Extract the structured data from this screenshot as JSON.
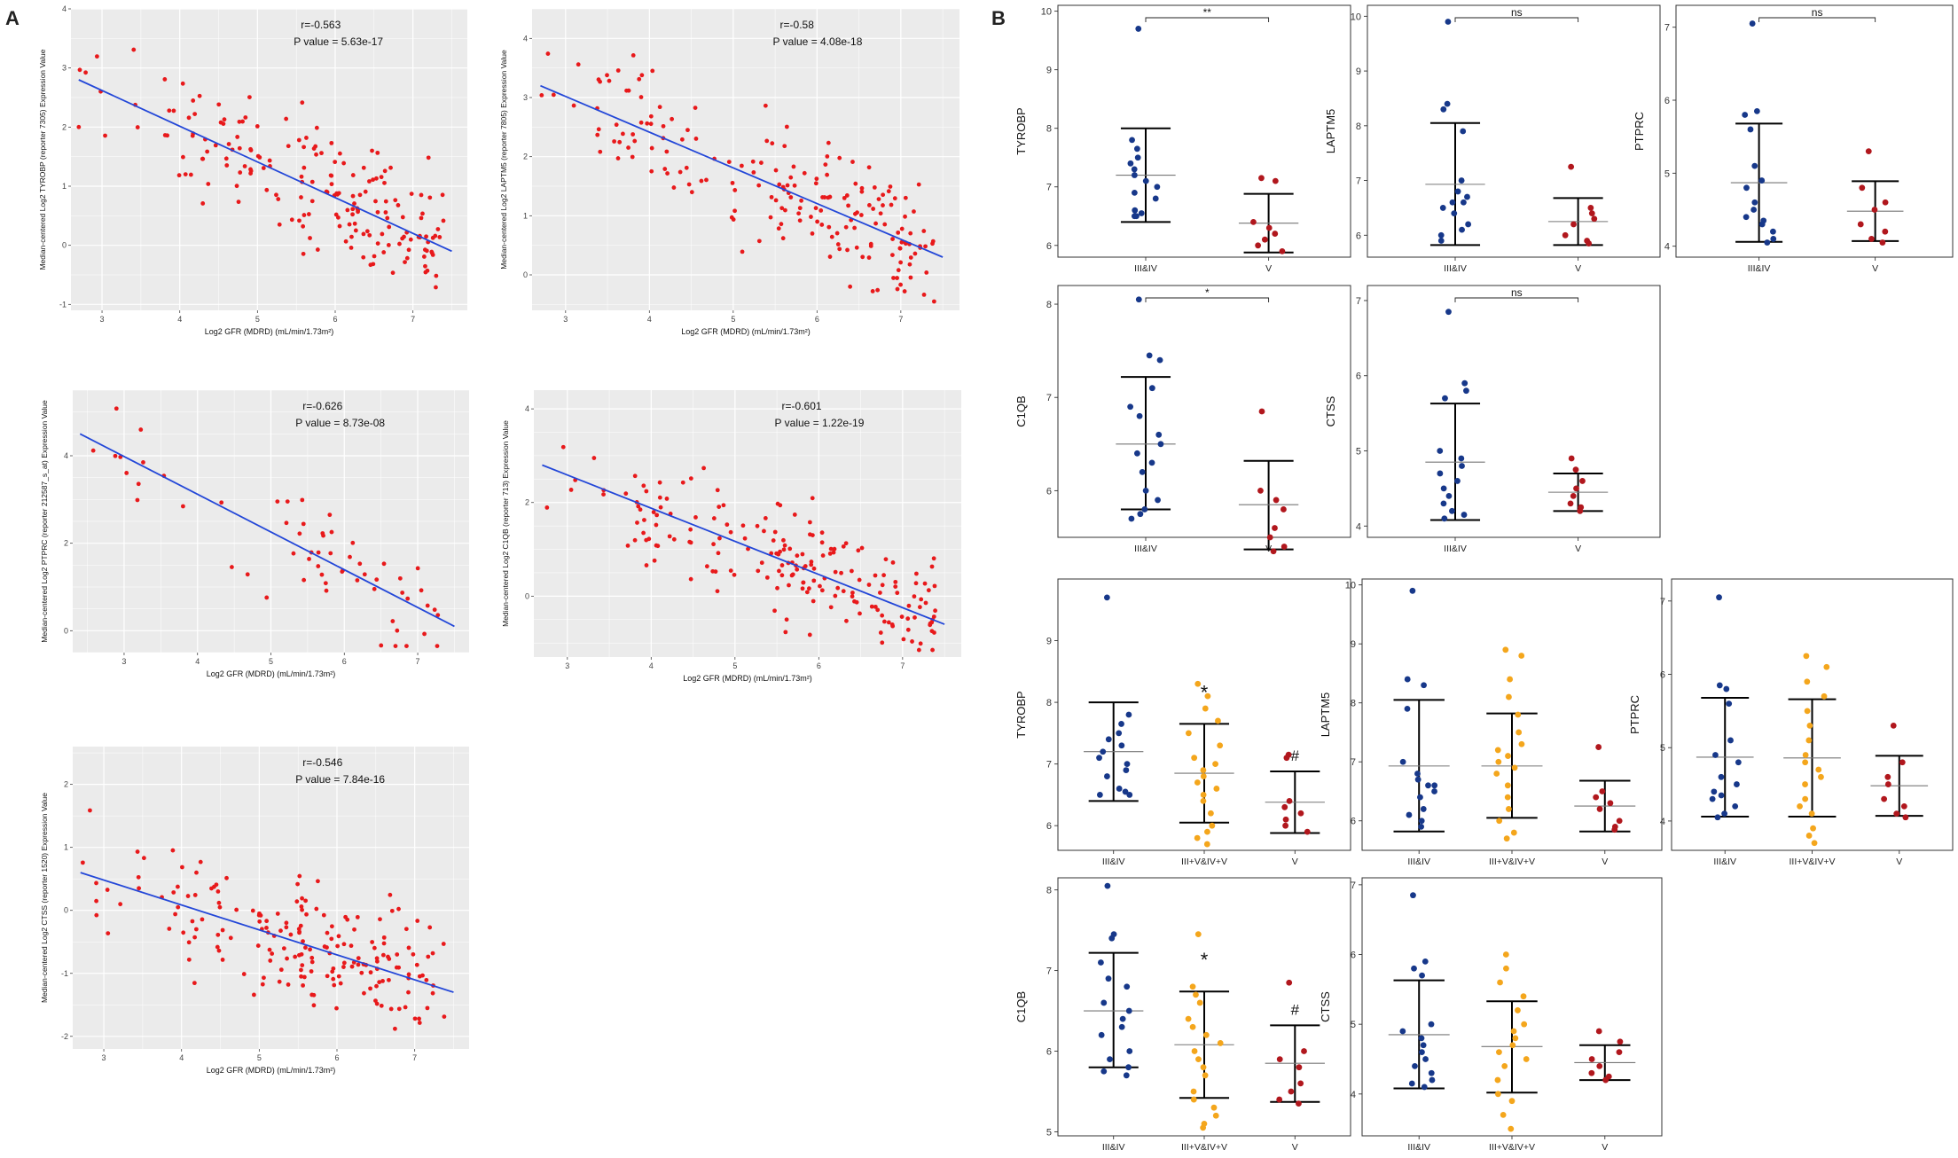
{
  "panel_labels": {
    "a": "A",
    "b": "B"
  },
  "colors": {
    "panel_bg": "#ebebeb",
    "grid": "#ffffff",
    "point": "#e8191b",
    "fit": "#2347d8",
    "grp1": "#17388a",
    "grp2": "#f4a61c",
    "grp3": "#b1171d"
  },
  "chart_data": [
    {
      "type": "scatter",
      "ylabel": "Median-centered Log2 TYROBP (reporter 7305) Expression Value",
      "xlabel": "Log2 GFR (MDRD) (mL/min/1.73m²)",
      "xlim": [
        2.6,
        7.7
      ],
      "ylim": [
        -1.1,
        4.0
      ],
      "xticks": [
        "3",
        "4",
        "5",
        "6",
        "7"
      ],
      "yticks": [
        "-1",
        "0",
        "1",
        "2",
        "3",
        "4"
      ],
      "annotation": [
        "r=-0.563",
        "P value = 5.63e-17"
      ],
      "fit": [
        [
          2.7,
          2.8
        ],
        [
          7.5,
          -0.1
        ]
      ],
      "n_points": 190,
      "seed": 11
    },
    {
      "type": "scatter",
      "ylabel": "Median-centered Log2 LAPTM5 (reporter 7805) Expression Value",
      "xlabel": "Log2 GFR (MDRD) (mL/min/1.73m²)",
      "xlim": [
        2.6,
        7.7
      ],
      "ylim": [
        -0.6,
        4.5
      ],
      "xticks": [
        "3",
        "4",
        "5",
        "6",
        "7"
      ],
      "yticks": [
        "0",
        "1",
        "2",
        "3",
        "4"
      ],
      "annotation": [
        "r=-0.58",
        "P value = 4.08e-18"
      ],
      "fit": [
        [
          2.7,
          3.2
        ],
        [
          7.5,
          0.3
        ]
      ],
      "n_points": 190,
      "seed": 23
    },
    {
      "type": "scatter",
      "ylabel": "Median-centered Log2 PTPRC (reporter 212587_s_at) Expression Value",
      "xlabel": "Log2 GFR (MDRD) (mL/min/1.73m²)",
      "xlim": [
        2.3,
        7.7
      ],
      "ylim": [
        -0.5,
        5.5
      ],
      "xticks": [
        "3",
        "4",
        "5",
        "6",
        "7"
      ],
      "yticks": [
        "0",
        "2",
        "4"
      ],
      "annotation": [
        "r=-0.626",
        "P value = 8.73e-08"
      ],
      "fit": [
        [
          2.4,
          4.5
        ],
        [
          7.5,
          0.1
        ]
      ],
      "n_points": 60,
      "seed": 37
    },
    {
      "type": "scatter",
      "ylabel": "Median-centered Log2 C1QB (reporter 713) Expression Value",
      "xlabel": "Log2 GFR (MDRD) (mL/min/1.73m²)",
      "xlim": [
        2.6,
        7.7
      ],
      "ylim": [
        -1.3,
        4.4
      ],
      "xticks": [
        "3",
        "4",
        "5",
        "6",
        "7"
      ],
      "yticks": [
        "0",
        "2",
        "4"
      ],
      "annotation": [
        "r=-0.601",
        "P value = 1.22e-19"
      ],
      "fit": [
        [
          2.7,
          2.8
        ],
        [
          7.5,
          -0.6
        ]
      ],
      "n_points": 190,
      "seed": 41
    },
    {
      "type": "scatter",
      "ylabel": "Median-centered Log2 CTSS (reporter 1520) Expression Value",
      "xlabel": "Log2 GFR (MDRD) (mL/min/1.73m²)",
      "xlim": [
        2.6,
        7.7
      ],
      "ylim": [
        -2.2,
        2.6
      ],
      "xticks": [
        "3",
        "4",
        "5",
        "6",
        "7"
      ],
      "yticks": [
        "-2",
        "-1",
        "0",
        "1",
        "2"
      ],
      "annotation": [
        "r=-0.546",
        "P value = 7.84e-16"
      ],
      "fit": [
        [
          2.7,
          0.6
        ],
        [
          7.5,
          -1.3
        ]
      ],
      "n_points": 190,
      "seed": 53
    },
    {
      "type": "dotplot",
      "ylabel": "TYROBP",
      "ylim": [
        5.8,
        10.1
      ],
      "yticks": [
        "6",
        "7",
        "8",
        "9",
        "10"
      ],
      "categories": [
        "III&IV",
        "V"
      ],
      "bracket": "**",
      "groups": [
        {
          "mean": 7.2,
          "lo": 6.4,
          "hi": 8.0,
          "points": [
            9.7,
            7.8,
            7.65,
            7.5,
            7.4,
            7.3,
            7.2,
            7.1,
            7.0,
            6.9,
            6.8,
            6.6,
            6.55,
            6.5,
            6.5
          ]
        },
        {
          "mean": 6.38,
          "lo": 5.88,
          "hi": 6.88,
          "points": [
            7.15,
            7.1,
            6.4,
            6.3,
            6.2,
            6.1,
            6.0,
            5.9
          ]
        }
      ]
    },
    {
      "type": "dotplot",
      "ylabel": "LAPTM5",
      "ylim": [
        5.6,
        10.2
      ],
      "yticks": [
        "6",
        "7",
        "8",
        "9",
        "10"
      ],
      "categories": [
        "III&IV",
        "V"
      ],
      "bracket": "ns",
      "groups": [
        {
          "mean": 6.93,
          "lo": 5.82,
          "hi": 8.05,
          "points": [
            9.9,
            8.4,
            8.3,
            7.9,
            7.0,
            6.7,
            6.6,
            6.6,
            6.4,
            6.2,
            6.1,
            6.0,
            5.9,
            6.8,
            6.5
          ]
        },
        {
          "mean": 6.25,
          "lo": 5.82,
          "hi": 6.68,
          "points": [
            7.25,
            6.5,
            6.4,
            6.3,
            6.2,
            6.0,
            5.9,
            5.85
          ]
        }
      ]
    },
    {
      "type": "dotplot",
      "ylabel": "PTPRC",
      "ylim": [
        3.85,
        7.3
      ],
      "yticks": [
        "4",
        "5",
        "6",
        "7"
      ],
      "categories": [
        "III&IV",
        "V"
      ],
      "bracket": "ns",
      "groups": [
        {
          "mean": 4.87,
          "lo": 4.06,
          "hi": 5.68,
          "points": [
            7.05,
            5.85,
            5.8,
            5.6,
            5.1,
            4.9,
            4.6,
            4.5,
            4.4,
            4.35,
            4.3,
            4.1,
            4.05,
            4.2,
            4.8
          ]
        },
        {
          "mean": 4.48,
          "lo": 4.07,
          "hi": 4.89,
          "points": [
            5.3,
            4.8,
            4.6,
            4.5,
            4.3,
            4.2,
            4.1,
            4.05
          ]
        }
      ]
    },
    {
      "type": "dotplot",
      "ylabel": "C1QB",
      "ylim": [
        5.5,
        8.2
      ],
      "yticks": [
        "6",
        "7",
        "8"
      ],
      "categories": [
        "III&IV",
        "V"
      ],
      "bracket": "*",
      "groups": [
        {
          "mean": 6.5,
          "lo": 5.8,
          "hi": 7.22,
          "points": [
            8.05,
            7.45,
            7.4,
            7.1,
            6.9,
            6.8,
            6.5,
            6.4,
            6.3,
            6.2,
            6.0,
            5.9,
            5.8,
            5.75,
            5.7,
            6.6
          ]
        },
        {
          "mean": 5.85,
          "lo": 5.37,
          "hi": 6.32,
          "points": [
            6.85,
            6.0,
            5.9,
            5.8,
            5.6,
            5.5,
            5.4,
            5.35
          ]
        }
      ]
    },
    {
      "type": "dotplot",
      "ylabel": "CTSS",
      "ylim": [
        3.85,
        7.2
      ],
      "yticks": [
        "4",
        "5",
        "6",
        "7"
      ],
      "categories": [
        "III&IV",
        "V"
      ],
      "bracket": "ns",
      "groups": [
        {
          "mean": 4.85,
          "lo": 4.08,
          "hi": 5.63,
          "points": [
            6.85,
            5.9,
            5.8,
            5.7,
            4.9,
            4.7,
            4.6,
            4.5,
            4.4,
            4.3,
            4.2,
            4.15,
            4.1,
            4.8,
            5.0
          ]
        },
        {
          "mean": 4.45,
          "lo": 4.2,
          "hi": 4.7,
          "points": [
            4.9,
            4.75,
            4.6,
            4.5,
            4.4,
            4.3,
            4.25,
            4.2
          ]
        }
      ]
    },
    {
      "type": "dotplot",
      "ylabel": "TYROBP",
      "ylim": [
        5.6,
        10.0
      ],
      "yticks": [
        "6",
        "7",
        "8",
        "9"
      ],
      "categories": [
        "III&IV",
        "III+V&IV+V",
        "V"
      ],
      "marks": [
        "",
        "*",
        "#"
      ],
      "groups": [
        {
          "mean": 7.2,
          "lo": 6.4,
          "hi": 8.0,
          "points": [
            9.7,
            7.8,
            7.65,
            7.5,
            7.4,
            7.3,
            7.2,
            7.1,
            7.0,
            6.9,
            6.8,
            6.6,
            6.55,
            6.5,
            6.5
          ]
        },
        {
          "mean": 6.85,
          "lo": 6.05,
          "hi": 7.65,
          "points": [
            8.3,
            8.1,
            7.9,
            7.7,
            7.5,
            7.3,
            7.1,
            6.9,
            6.8,
            6.7,
            6.5,
            6.4,
            6.2,
            6.0,
            5.9,
            5.8,
            5.7,
            6.6,
            7.0
          ]
        },
        {
          "mean": 6.38,
          "lo": 5.88,
          "hi": 6.88,
          "points": [
            7.15,
            7.1,
            6.4,
            6.3,
            6.2,
            6.1,
            6.0,
            5.9
          ]
        }
      ]
    },
    {
      "type": "dotplot",
      "ylabel": "LAPTM5",
      "ylim": [
        5.5,
        10.1
      ],
      "yticks": [
        "6",
        "7",
        "8",
        "9",
        "10"
      ],
      "categories": [
        "III&IV",
        "III+V&IV+V",
        "V"
      ],
      "groups": [
        {
          "mean": 6.93,
          "lo": 5.82,
          "hi": 8.05,
          "points": [
            9.9,
            8.4,
            8.3,
            7.9,
            7.0,
            6.7,
            6.6,
            6.6,
            6.4,
            6.2,
            6.1,
            6.0,
            5.9,
            6.8,
            6.5
          ]
        },
        {
          "mean": 6.93,
          "lo": 6.05,
          "hi": 7.82,
          "points": [
            8.9,
            8.8,
            8.4,
            8.1,
            7.8,
            7.5,
            7.3,
            7.1,
            7.0,
            6.8,
            6.6,
            6.4,
            6.2,
            6.0,
            5.8,
            5.7,
            6.9,
            7.2
          ]
        },
        {
          "mean": 6.25,
          "lo": 5.82,
          "hi": 6.68,
          "points": [
            7.25,
            6.5,
            6.4,
            6.3,
            6.2,
            6.0,
            5.9,
            5.85
          ]
        }
      ]
    },
    {
      "type": "dotplot",
      "ylabel": "PTPRC",
      "ylim": [
        3.6,
        7.3
      ],
      "yticks": [
        "4",
        "5",
        "6",
        "7"
      ],
      "categories": [
        "III&IV",
        "III+V&IV+V",
        "V"
      ],
      "groups": [
        {
          "mean": 4.87,
          "lo": 4.06,
          "hi": 5.68,
          "points": [
            7.05,
            5.85,
            5.8,
            5.6,
            5.1,
            4.9,
            4.6,
            4.5,
            4.4,
            4.35,
            4.3,
            4.1,
            4.05,
            4.2,
            4.8
          ]
        },
        {
          "mean": 4.86,
          "lo": 4.06,
          "hi": 5.66,
          "points": [
            6.25,
            6.1,
            5.9,
            5.7,
            5.5,
            5.3,
            5.1,
            4.9,
            4.7,
            4.6,
            4.5,
            4.3,
            4.2,
            4.1,
            3.9,
            3.8,
            3.7,
            4.8
          ]
        },
        {
          "mean": 4.48,
          "lo": 4.07,
          "hi": 4.89,
          "points": [
            5.3,
            4.8,
            4.6,
            4.5,
            4.3,
            4.2,
            4.1,
            4.05
          ]
        }
      ]
    },
    {
      "type": "dotplot",
      "ylabel": "C1QB",
      "ylim": [
        4.95,
        8.15
      ],
      "yticks": [
        "5",
        "6",
        "7",
        "8"
      ],
      "categories": [
        "III&IV",
        "III+V&IV+V",
        "V"
      ],
      "marks": [
        "",
        "*",
        "#"
      ],
      "groups": [
        {
          "mean": 6.5,
          "lo": 5.8,
          "hi": 7.22,
          "points": [
            8.05,
            7.45,
            7.4,
            7.1,
            6.9,
            6.8,
            6.5,
            6.4,
            6.3,
            6.2,
            6.0,
            5.9,
            5.8,
            5.75,
            5.7,
            6.6
          ]
        },
        {
          "mean": 6.08,
          "lo": 5.42,
          "hi": 6.74,
          "points": [
            7.45,
            6.8,
            6.7,
            6.6,
            6.4,
            6.3,
            6.1,
            6.0,
            5.9,
            5.7,
            5.5,
            5.4,
            5.3,
            5.2,
            5.1,
            5.05,
            6.2,
            5.8
          ]
        },
        {
          "mean": 5.85,
          "lo": 5.37,
          "hi": 6.32,
          "points": [
            6.85,
            6.0,
            5.9,
            5.8,
            5.6,
            5.5,
            5.4,
            5.35
          ]
        }
      ]
    },
    {
      "type": "dotplot",
      "ylabel": "CTSS",
      "ylim": [
        3.4,
        7.1
      ],
      "yticks": [
        "4",
        "5",
        "6",
        "7"
      ],
      "categories": [
        "III&IV",
        "III+V&IV+V",
        "V"
      ],
      "groups": [
        {
          "mean": 4.85,
          "lo": 4.08,
          "hi": 5.63,
          "points": [
            6.85,
            5.9,
            5.8,
            5.7,
            4.9,
            4.7,
            4.6,
            4.5,
            4.4,
            4.3,
            4.2,
            4.15,
            4.1,
            4.8,
            5.0
          ]
        },
        {
          "mean": 4.68,
          "lo": 4.02,
          "hi": 5.33,
          "points": [
            6.0,
            5.8,
            5.6,
            5.4,
            5.2,
            5.0,
            4.8,
            4.6,
            4.5,
            4.4,
            4.2,
            4.0,
            3.9,
            3.7,
            3.5,
            4.7,
            4.9
          ]
        },
        {
          "mean": 4.45,
          "lo": 4.2,
          "hi": 4.7,
          "points": [
            4.9,
            4.75,
            4.6,
            4.5,
            4.4,
            4.3,
            4.25,
            4.2
          ]
        }
      ]
    }
  ]
}
